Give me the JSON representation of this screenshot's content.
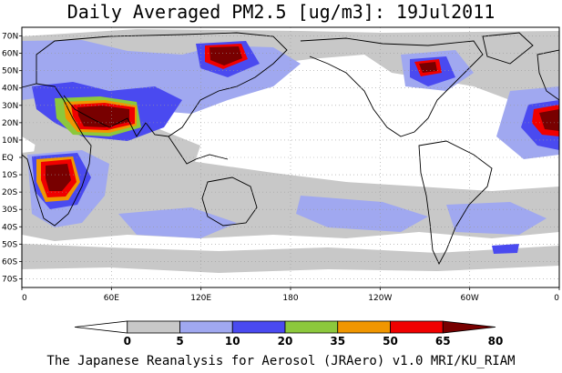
{
  "title": "Daily Averaged PM2.5 [ug/m3]: 19Jul2011",
  "footer": "The Japanese Reanalysis for Aerosol (JRAero) v1.0 MRI/KU_RIAM",
  "map": {
    "lat_labels": [
      "70N",
      "60N",
      "50N",
      "40N",
      "30N",
      "20N",
      "10N",
      "EQ",
      "10S",
      "20S",
      "30S",
      "40S",
      "50S",
      "60S",
      "70S"
    ],
    "lon_labels": [
      "0",
      "60E",
      "120E",
      "180",
      "120W",
      "60W",
      "0"
    ]
  },
  "colorbar": {
    "ticks": [
      "0",
      "5",
      "10",
      "20",
      "35",
      "50",
      "65",
      "80"
    ],
    "colors": [
      "#ffffff",
      "#c8c8c8",
      "#a0a8f0",
      "#4a4af0",
      "#8cc83c",
      "#f09600",
      "#f00000",
      "#780000"
    ]
  },
  "palette": {
    "low": "#c8c8c8",
    "light_blue": "#a0a8f0",
    "blue": "#4a4af0",
    "green": "#8cc83c",
    "orange": "#f09600",
    "red": "#f00000",
    "dark_red": "#780000"
  }
}
